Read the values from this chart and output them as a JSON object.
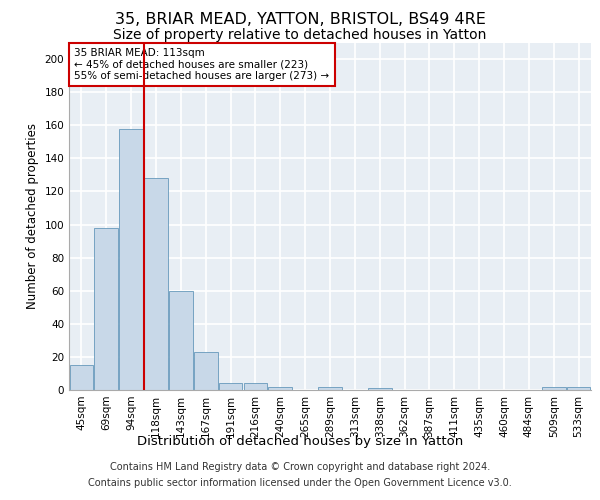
{
  "title1": "35, BRIAR MEAD, YATTON, BRISTOL, BS49 4RE",
  "title2": "Size of property relative to detached houses in Yatton",
  "xlabel": "Distribution of detached houses by size in Yatton",
  "ylabel": "Number of detached properties",
  "footer1": "Contains HM Land Registry data © Crown copyright and database right 2024.",
  "footer2": "Contains public sector information licensed under the Open Government Licence v3.0.",
  "bar_color": "#c8d8e8",
  "bar_edge_color": "#6699bb",
  "property_line_color": "#cc0000",
  "annotation_box_color": "#cc0000",
  "annotation_text": "35 BRIAR MEAD: 113sqm\n← 45% of detached houses are smaller (223)\n55% of semi-detached houses are larger (273) →",
  "categories": [
    "45sqm",
    "69sqm",
    "94sqm",
    "118sqm",
    "143sqm",
    "167sqm",
    "191sqm",
    "216sqm",
    "240sqm",
    "265sqm",
    "289sqm",
    "313sqm",
    "338sqm",
    "362sqm",
    "387sqm",
    "411sqm",
    "435sqm",
    "460sqm",
    "484sqm",
    "509sqm",
    "533sqm"
  ],
  "values": [
    15,
    98,
    158,
    128,
    60,
    23,
    4,
    4,
    2,
    0,
    2,
    0,
    1,
    0,
    0,
    0,
    0,
    0,
    0,
    2,
    2
  ],
  "ylim": [
    0,
    210
  ],
  "yticks": [
    0,
    20,
    40,
    60,
    80,
    100,
    120,
    140,
    160,
    180,
    200
  ],
  "bg_color": "#e8eef4",
  "grid_color": "#ffffff",
  "title1_fontsize": 11.5,
  "title2_fontsize": 10,
  "xlabel_fontsize": 9.5,
  "ylabel_fontsize": 8.5,
  "tick_fontsize": 7.5,
  "footer_fontsize": 7,
  "property_line_x": 3
}
